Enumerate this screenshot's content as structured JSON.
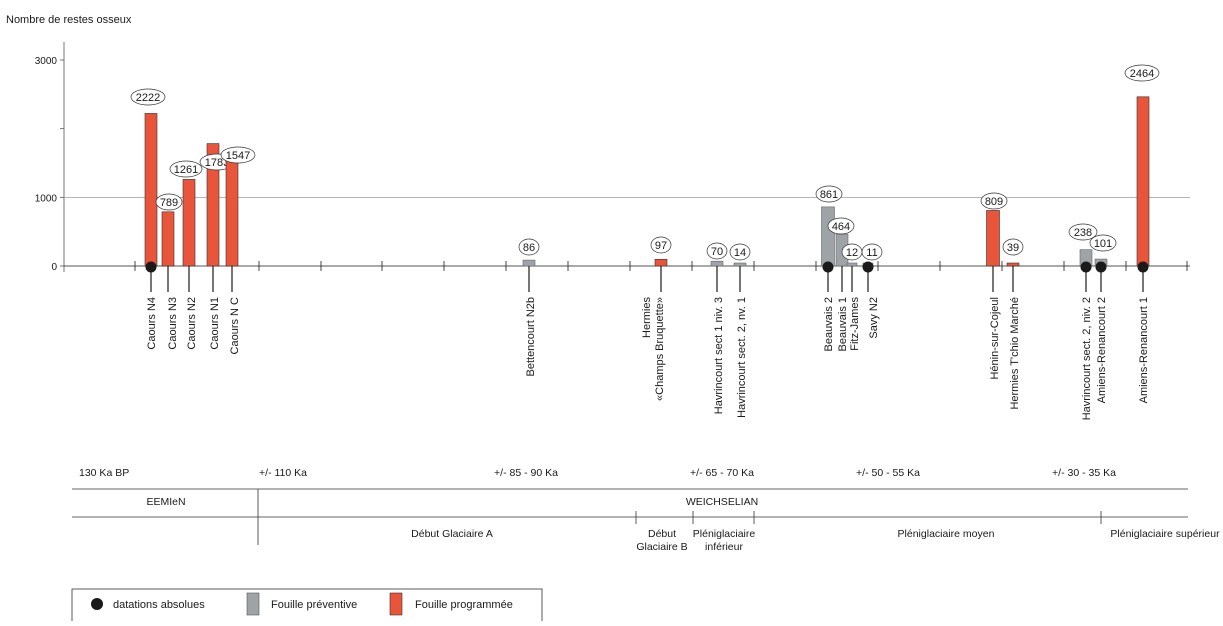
{
  "chart_data": {
    "type": "bar",
    "ylabel": "Nombre de restes osseux",
    "yticks": [
      {
        "value": 0,
        "label": "0"
      },
      {
        "value": 1000,
        "label": "1000"
      },
      {
        "value": 3000,
        "label": "3000"
      }
    ],
    "ylim": [
      0,
      3150
    ],
    "series": [
      {
        "name": "Fouille préventive",
        "color": "#9ea3a8"
      },
      {
        "name": "Fouille programmée",
        "color": "#e8553a"
      }
    ],
    "sites": [
      {
        "label": "Caours N4",
        "value": 2222,
        "type": "programmee",
        "dated": true
      },
      {
        "label": "Caours N3",
        "value": 789,
        "type": "programmee",
        "dated": false
      },
      {
        "label": "Caours N2",
        "value": 1261,
        "type": "programmee",
        "dated": false
      },
      {
        "label": "Caours N1",
        "value": 1783,
        "type": "programmee",
        "dated": false
      },
      {
        "label": "Caours N C",
        "value": 1547,
        "type": "programmee",
        "dated": false
      },
      {
        "label": "Bettencourt N2b",
        "value": 86,
        "type": "preventive",
        "dated": false
      },
      {
        "label": "Hermies «Champs Bruquette»",
        "value": 97,
        "type": "programmee",
        "dated": false
      },
      {
        "label": "Havrincourt sect 1 niv. 3",
        "value": 70,
        "type": "preventive",
        "dated": false
      },
      {
        "label": "Havrincourt sect. 2, nv. 1",
        "value": 14,
        "type": "preventive",
        "dated": false
      },
      {
        "label": "Beauvais 2",
        "value": 861,
        "type": "preventive",
        "dated": true
      },
      {
        "label": "Beauvais 1",
        "value": 464,
        "type": "preventive",
        "dated": false
      },
      {
        "label": "Fitz-James",
        "value": 12,
        "type": "preventive",
        "dated": false
      },
      {
        "label": "Savy N2",
        "value": 11,
        "type": "preventive",
        "dated": true
      },
      {
        "label": "Hénin-sur-Cojeul",
        "value": 809,
        "type": "programmee",
        "dated": false
      },
      {
        "label": "Hermies T'chio Marché",
        "value": 39,
        "type": "programmee",
        "dated": false
      },
      {
        "label": "Havrincourt sect. 2, niv. 2",
        "value": 238,
        "type": "preventive",
        "dated": true
      },
      {
        "label": "Amiens-Renancourt 2",
        "value": 101,
        "type": "preventive",
        "dated": true
      },
      {
        "label": "Amiens-Renancourt 1",
        "value": 2464,
        "type": "programmee",
        "dated": true
      }
    ]
  },
  "chronology": {
    "ages": [
      "130 Ka BP",
      "+/- 110 Ka",
      "+/- 85 - 90 Ka",
      "+/- 65 - 70 Ka",
      "+/- 50 - 55 Ka",
      "+/- 30 - 35 Ka"
    ],
    "stages": [
      "EEMIeN",
      "WEICHSELIAN"
    ],
    "phases": [
      "Début Glaciaire A",
      "Début Glaciaire B",
      "Pléniglaciaire inférieur",
      "Pléniglaciaire moyen",
      "Pléniglaciaire supérieur"
    ]
  },
  "legend": {
    "dated": "datations absolues",
    "preventive": "Fouille préventive",
    "programmee": "Fouille programmée"
  }
}
